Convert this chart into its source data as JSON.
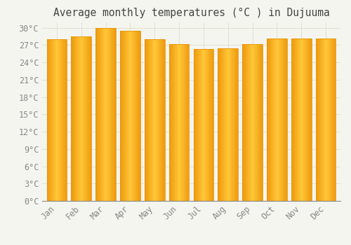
{
  "title": "Average monthly temperatures (°C ) in Dujuuma",
  "months": [
    "Jan",
    "Feb",
    "Mar",
    "Apr",
    "May",
    "Jun",
    "Jul",
    "Aug",
    "Sep",
    "Oct",
    "Nov",
    "Dec"
  ],
  "temperatures": [
    28.0,
    28.5,
    30.0,
    29.5,
    28.0,
    27.2,
    26.3,
    26.4,
    27.2,
    28.2,
    28.2,
    28.2
  ],
  "bar_color_center": "#FFB930",
  "bar_color_edge": "#E8960A",
  "bar_color_gradient_light": "#FFD060",
  "background_color": "#F5F5F0",
  "plot_bg_color": "#F5F5F0",
  "grid_color": "#DDDDCC",
  "ytick_interval": 3,
  "ymax": 31,
  "ymin": 0,
  "title_fontsize": 10.5,
  "tick_fontsize": 8.5,
  "tick_label_color": "#888888",
  "title_color": "#444444"
}
